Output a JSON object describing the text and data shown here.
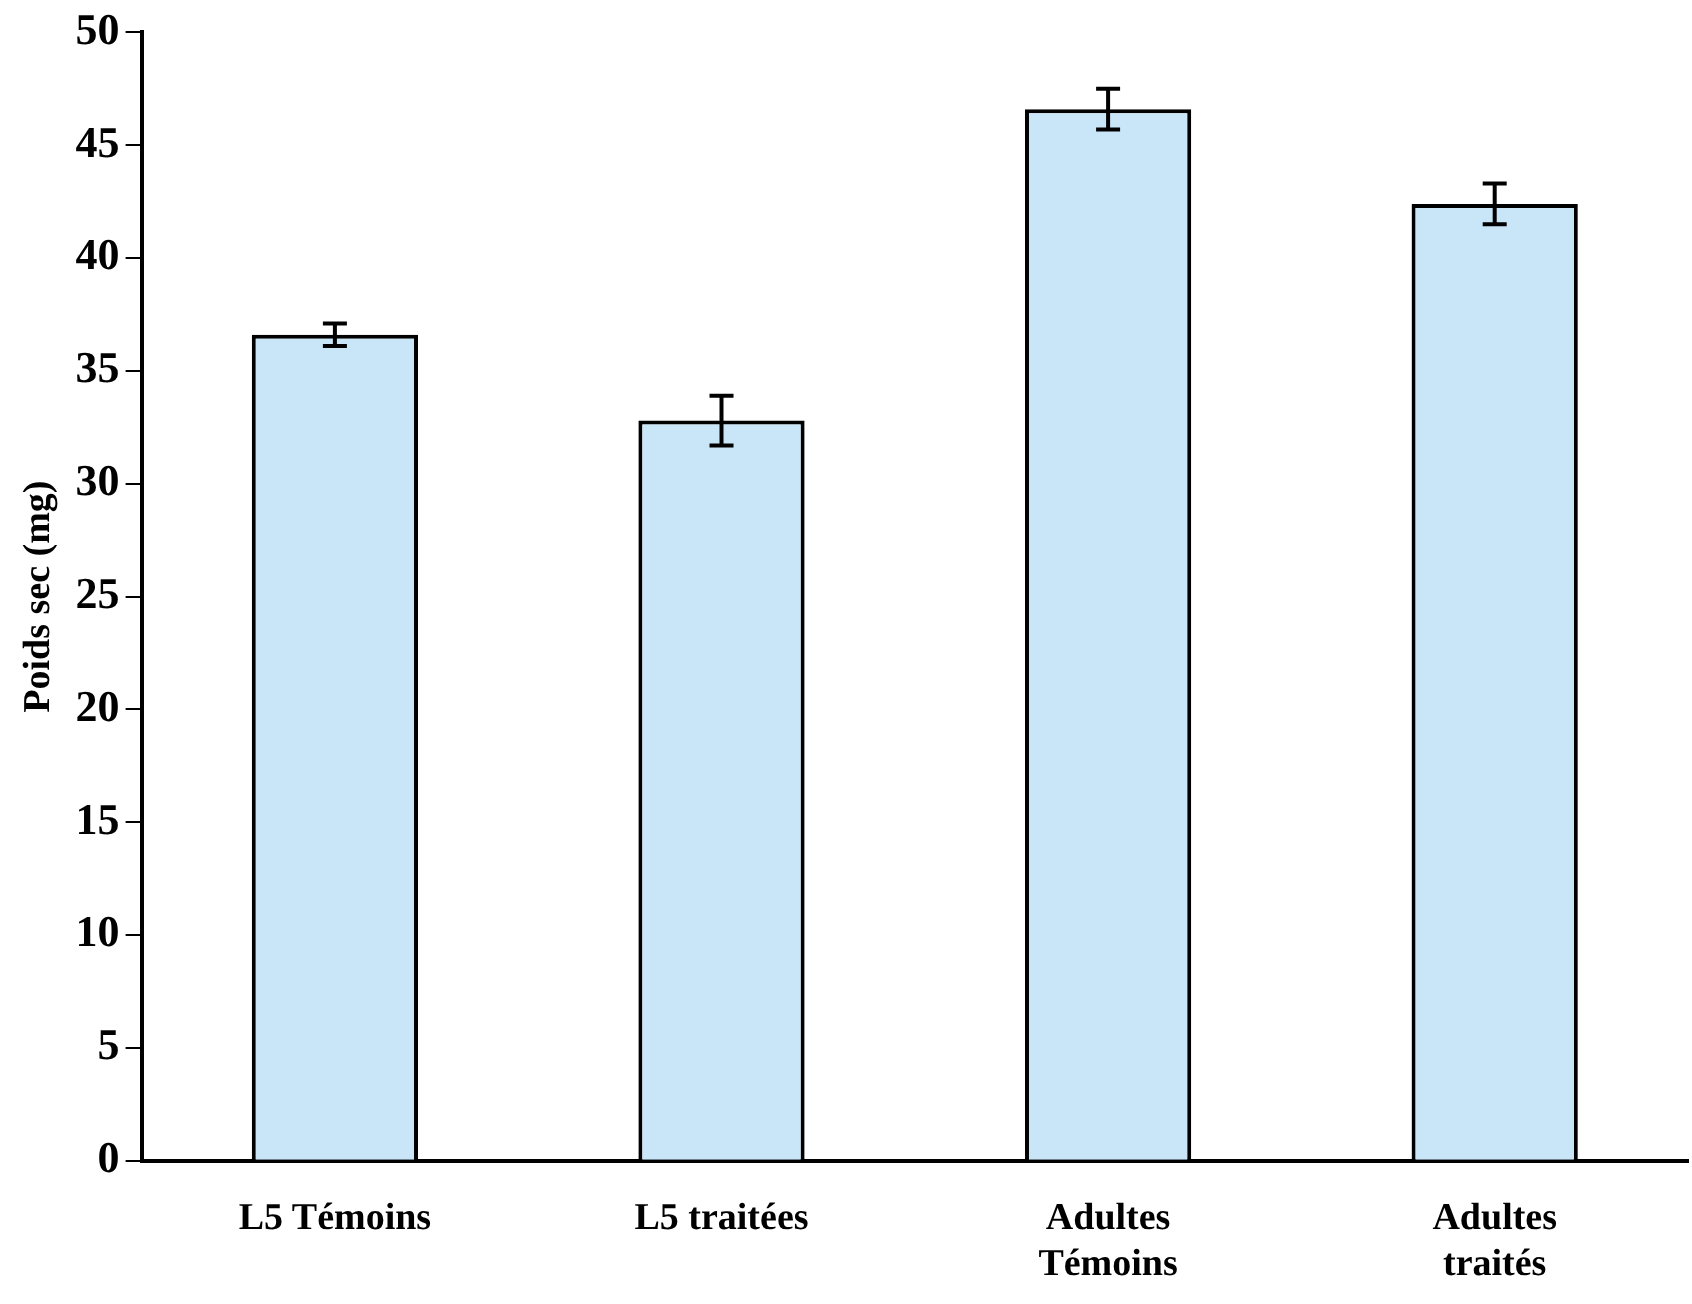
{
  "chart_data": {
    "type": "bar",
    "ylabel": "Poids sec (mg)",
    "categories": [
      "L5 Témoins",
      "L5 traitées",
      "Adultes Témoins",
      "Adultes traités"
    ],
    "values": [
      36.6,
      32.8,
      46.6,
      42.4
    ],
    "errors": [
      0.5,
      1.1,
      0.9,
      0.9
    ],
    "color": "#c8e6f8",
    "ylim": [
      0,
      50
    ],
    "yticks": [
      0,
      5,
      10,
      15,
      20,
      25,
      30,
      35,
      40,
      45,
      50
    ],
    "grid": false,
    "legend": false
  }
}
